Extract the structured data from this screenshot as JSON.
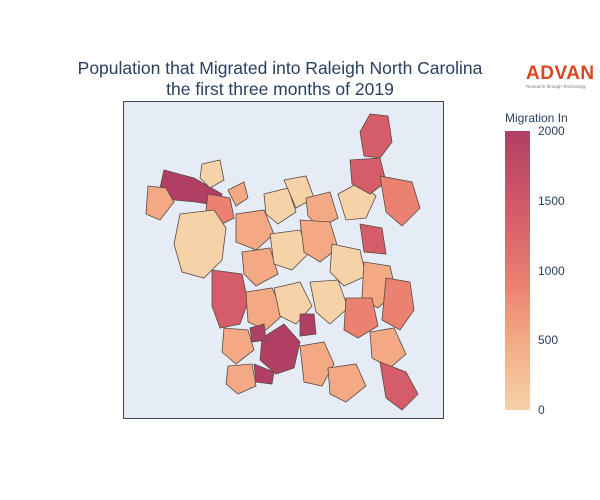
{
  "title": {
    "line1": "Population that Migrated into Raleigh North Carolina",
    "line2": "the first three months of 2019"
  },
  "logo": {
    "word": "ADVAN",
    "tagline": "Research through Technology",
    "color": "#d9471f"
  },
  "colorbar": {
    "title": "Migration In",
    "min": 0,
    "max": 2000,
    "ticks": [
      {
        "value": 0,
        "label": "0"
      },
      {
        "value": 500,
        "label": "500"
      },
      {
        "value": 1000,
        "label": "1000"
      },
      {
        "value": 1500,
        "label": "1500"
      },
      {
        "value": 2000,
        "label": "2000"
      }
    ],
    "colorscale": [
      "#f6d2a9",
      "#f3aa84",
      "#ea8171",
      "#d55d6a",
      "#b13f64"
    ]
  },
  "map": {
    "background": "#e5ecf6",
    "region_stroke": "#5a4a42"
  }
}
